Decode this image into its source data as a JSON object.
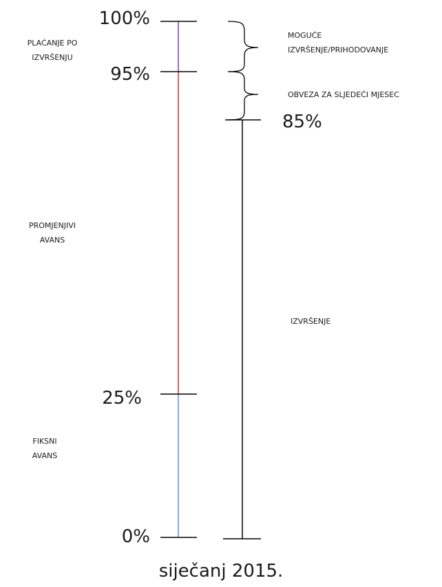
{
  "percent_labels": {
    "p100": "100%",
    "p95": "95%",
    "p85": "85%",
    "p25": "25%",
    "p0": "0%"
  },
  "left_labels": {
    "placanje_line1": "PLAĆANJE PO",
    "placanje_line2": "IZVRŠENJU",
    "promjenjivi_line1": "PROMJENJIVI",
    "promjenjivi_line2": "AVANS",
    "fiksni_line1": "FIKSNI",
    "fiksni_line2": "AVANS"
  },
  "right_labels": {
    "moguce_line1": "MOGUĆE",
    "moguce_line2": "IZVRŠENJE/PRIHODOVANJE",
    "obveza": "OBVEZA ZA SLJEDEĆI MJESEC",
    "izvrsenje": "IZVRŠENJE"
  },
  "caption": "siječanj 2015.",
  "colors": {
    "segment_top": "#7b3fa8",
    "segment_middle": "#d32f2f",
    "segment_bottom": "#5b8fd6",
    "axis": "#000000"
  }
}
